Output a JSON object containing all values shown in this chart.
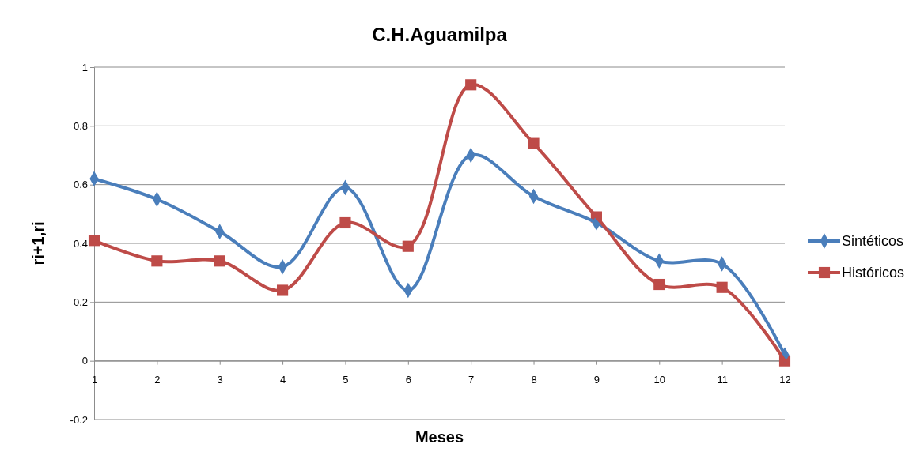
{
  "chart_data": {
    "type": "line",
    "title": "C.H.Aguamilpa",
    "xlabel": "Meses",
    "ylabel": "ri+1,ri",
    "x": [
      1,
      2,
      3,
      4,
      5,
      6,
      7,
      8,
      9,
      10,
      11,
      12
    ],
    "xlim": [
      1,
      12
    ],
    "xticks": [
      1,
      2,
      3,
      4,
      5,
      6,
      7,
      8,
      9,
      10,
      11,
      12
    ],
    "ylim": [
      -0.2,
      1
    ],
    "yticks": [
      -0.2,
      0,
      0.2,
      0.4,
      0.6,
      0.8,
      1
    ],
    "grid": "y",
    "legend": "right",
    "series": [
      {
        "name": "Sintéticos",
        "color": "#4a7ebb",
        "marker": "diamond",
        "values": [
          0.62,
          0.55,
          0.44,
          0.32,
          0.59,
          0.24,
          0.7,
          0.56,
          0.47,
          0.34,
          0.33,
          0.02
        ]
      },
      {
        "name": "Históricos",
        "color": "#be4b48",
        "marker": "square",
        "values": [
          0.41,
          0.34,
          0.34,
          0.24,
          0.47,
          0.39,
          0.94,
          0.74,
          0.49,
          0.26,
          0.25,
          0.0
        ]
      }
    ]
  }
}
